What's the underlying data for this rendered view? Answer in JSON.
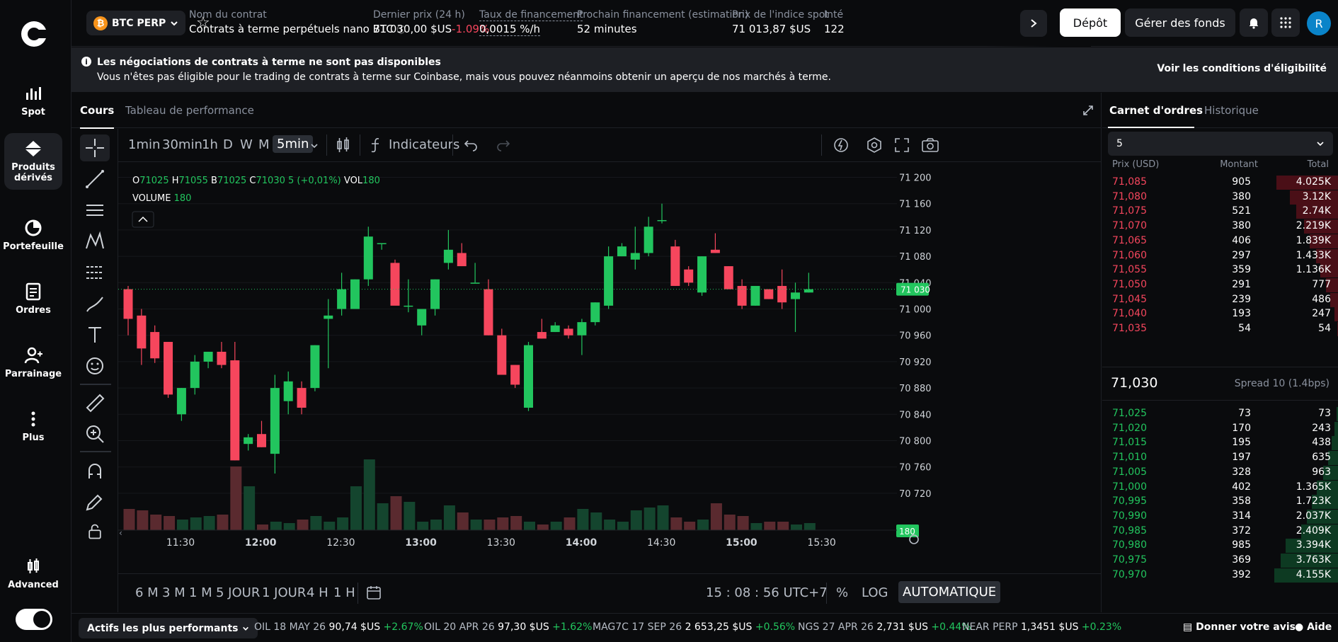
{
  "nav": {
    "items": [
      {
        "label": "Spot"
      },
      {
        "label": "Produits dérivés"
      },
      {
        "label": "Portefeuille"
      },
      {
        "label": "Ordres"
      },
      {
        "label": "Parrainage"
      },
      {
        "label": "Plus"
      },
      {
        "label": "Advanced"
      }
    ]
  },
  "header": {
    "asset": "BTC PERP",
    "contract_label": "Nom du contrat",
    "contract_value": "Contrats à terme perpétuels nano BTC",
    "last_label": "Dernier prix (24 h)",
    "last_value": "71 030,00 $US",
    "last_change": "-1.09%",
    "funding_label": "Taux de financement",
    "funding_value": "0,0015 %/h",
    "next_label": "Prochain financement (estimation)",
    "next_value": "52 minutes",
    "index_label": "Prix de l'indice spot",
    "index_value": "71 013,87 $US",
    "oi_label": "Inté",
    "oi_value": "122",
    "deposit": "Dépôt",
    "manage": "Gérer des fonds",
    "avatar": "R"
  },
  "banner": {
    "title": "Les négociations de contrats à terme ne sont pas disponibles",
    "body": "Vous n'êtes pas éligible pour le trading de contrats à terme sur Coinbase, mais vous pouvez néanmoins obtenir un aperçu de nos marchés à terme.",
    "link": "Voir les conditions d'éligibilité"
  },
  "chart_tabs": [
    "Cours",
    "Tableau de performance"
  ],
  "timeframes": [
    "1min",
    "30min",
    "1h",
    "D",
    "W",
    "M",
    "5min"
  ],
  "indicators": "Indicateurs",
  "ohlc": {
    "o": "71025",
    "h": "71055",
    "b": "71025",
    "c": "71030",
    "chg": "5 (+0,01%)",
    "vol": "180",
    "volume_label": "VOLUME"
  },
  "ranges": [
    "6 M",
    "3 M",
    "1 M",
    "5 JOUR",
    "1 JOUR",
    "4 H",
    "1 H"
  ],
  "clock": "15 : 08 : 56 UTC+7",
  "scale": {
    "pct": "%",
    "log": "LOG",
    "auto": "AUTOMATIQUE"
  },
  "colors": {
    "up": "#22c55e",
    "down": "#f6465d",
    "upVol": "#14452e",
    "downVol": "#5a2a2f"
  },
  "chart_data": {
    "type": "candlestick",
    "x_ticks": [
      "11:30",
      "12:00",
      "12:30",
      "13:00",
      "13:30",
      "14:00",
      "14:30",
      "15:00",
      "15:30"
    ],
    "y_ticks": [
      "71 200",
      "71 160",
      "71 120",
      "71 080",
      "71 040",
      "71 000",
      "70 960",
      "70 920",
      "70 880",
      "70 840",
      "70 800",
      "70 760",
      "70 720"
    ],
    "ylim": [
      70707,
      71207
    ],
    "price_label": "71 030",
    "volume_label": "180",
    "candles": [
      [
        71030,
        71035,
        70960,
        70985
      ],
      [
        70990,
        71000,
        70915,
        70940
      ],
      [
        70965,
        70975,
        70918,
        70925
      ],
      [
        70950,
        70950,
        70865,
        70870
      ],
      [
        70840,
        70880,
        70830,
        70880
      ],
      [
        70880,
        70930,
        70870,
        70920
      ],
      [
        70920,
        70935,
        70910,
        70935
      ],
      [
        70935,
        70950,
        70910,
        70915
      ],
      [
        70922,
        70950,
        70770,
        70770
      ],
      [
        70795,
        70810,
        70785,
        70805
      ],
      [
        70810,
        70830,
        70790,
        70790
      ],
      [
        70780,
        70900,
        70750,
        70880
      ],
      [
        70860,
        70905,
        70840,
        70890
      ],
      [
        70880,
        70890,
        70840,
        70850
      ],
      [
        70880,
        70945,
        70875,
        70945
      ],
      [
        70985,
        71015,
        70910,
        70990
      ],
      [
        71000,
        71055,
        70990,
        71030
      ],
      [
        71000,
        71045,
        71000,
        71045
      ],
      [
        71045,
        71125,
        71035,
        71110
      ],
      [
        71100,
        71100,
        71090,
        71100
      ],
      [
        71070,
        71075,
        71010,
        71005
      ],
      [
        71005,
        71045,
        70995,
        71005
      ],
      [
        70975,
        71000,
        70960,
        71000
      ],
      [
        71000,
        71045,
        70990,
        71045
      ],
      [
        71070,
        71120,
        71060,
        71090
      ],
      [
        71085,
        71100,
        71065,
        71065
      ],
      [
        71040,
        71070,
        71040,
        71040
      ],
      [
        71030,
        71045,
        70960,
        70960
      ],
      [
        70960,
        70970,
        70900,
        70900
      ],
      [
        70915,
        70915,
        70880,
        70885
      ],
      [
        70850,
        70950,
        70845,
        70945
      ],
      [
        70965,
        70985,
        70955,
        70955
      ],
      [
        70965,
        70980,
        70965,
        70975
      ],
      [
        70970,
        70975,
        70955,
        70960
      ],
      [
        70960,
        70985,
        70930,
        70980
      ],
      [
        70980,
        71010,
        70975,
        71010
      ],
      [
        71005,
        71095,
        71000,
        71080
      ],
      [
        71080,
        71100,
        71080,
        71095
      ],
      [
        71075,
        71125,
        71060,
        71085
      ],
      [
        71085,
        71140,
        71080,
        71125
      ],
      [
        71135,
        71160,
        71130,
        71135
      ],
      [
        71095,
        71105,
        71035,
        71035
      ],
      [
        71060,
        71065,
        71035,
        71040
      ],
      [
        71025,
        71080,
        71020,
        71080
      ],
      [
        71090,
        71115,
        71085,
        71085
      ],
      [
        71065,
        71065,
        71030,
        71030
      ],
      [
        71035,
        71045,
        71000,
        71005
      ],
      [
        71005,
        71035,
        71005,
        71035
      ],
      [
        71030,
        71030,
        71015,
        71015
      ],
      [
        71035,
        71060,
        71000,
        71010
      ],
      [
        71015,
        71040,
        70965,
        71025
      ],
      [
        71025,
        71055,
        71025,
        71030
      ]
    ],
    "volumes": [
      30,
      28,
      22,
      20,
      15,
      18,
      20,
      22,
      90,
      62,
      8,
      12,
      10,
      15,
      20,
      12,
      18,
      62,
      100,
      38,
      48,
      40,
      12,
      15,
      35,
      25,
      15,
      15,
      18,
      20,
      12,
      8,
      12,
      18,
      30,
      25,
      15,
      12,
      28,
      32,
      35,
      18,
      12,
      15,
      38,
      22,
      20,
      10,
      12,
      12,
      8,
      10
    ]
  },
  "orderbook": {
    "tabs": [
      "Carnet d'ordres",
      "Historique"
    ],
    "group": "5",
    "headers": [
      "Prix (USD)",
      "Montant",
      "Total"
    ],
    "asks": [
      {
        "p": "71,085",
        "a": "905",
        "t": "4.025K"
      },
      {
        "p": "71,080",
        "a": "380",
        "t": "3.12K"
      },
      {
        "p": "71,075",
        "a": "521",
        "t": "2.74K"
      },
      {
        "p": "71,070",
        "a": "380",
        "t": "2.219K"
      },
      {
        "p": "71,065",
        "a": "406",
        "t": "1.839K"
      },
      {
        "p": "71,060",
        "a": "297",
        "t": "1.433K"
      },
      {
        "p": "71,055",
        "a": "359",
        "t": "1.136K"
      },
      {
        "p": "71,050",
        "a": "291",
        "t": "777"
      },
      {
        "p": "71,045",
        "a": "239",
        "t": "486"
      },
      {
        "p": "71,040",
        "a": "193",
        "t": "247"
      },
      {
        "p": "71,035",
        "a": "54",
        "t": "54"
      }
    ],
    "mid": "71,030",
    "spread": "Spread 10 (1.4bps)",
    "bids": [
      {
        "p": "71,025",
        "a": "73",
        "t": "73"
      },
      {
        "p": "71,020",
        "a": "170",
        "t": "243"
      },
      {
        "p": "71,015",
        "a": "195",
        "t": "438"
      },
      {
        "p": "71,010",
        "a": "197",
        "t": "635"
      },
      {
        "p": "71,005",
        "a": "328",
        "t": "963"
      },
      {
        "p": "71,000",
        "a": "402",
        "t": "1.365K"
      },
      {
        "p": "70,995",
        "a": "358",
        "t": "1.723K"
      },
      {
        "p": "70,990",
        "a": "314",
        "t": "2.037K"
      },
      {
        "p": "70,985",
        "a": "372",
        "t": "2.409K"
      },
      {
        "p": "70,980",
        "a": "985",
        "t": "3.394K"
      },
      {
        "p": "70,975",
        "a": "369",
        "t": "3.763K"
      },
      {
        "p": "70,970",
        "a": "392",
        "t": "4.155K"
      }
    ],
    "ask_depth": [
      4.025,
      3.12,
      2.74,
      2.219,
      1.839,
      1.433,
      1.136,
      0.777,
      0.486,
      0.247,
      0.054
    ],
    "bid_depth": [
      0.073,
      0.243,
      0.438,
      0.635,
      0.963,
      1.365,
      1.723,
      2.037,
      2.409,
      3.394,
      3.763,
      4.155
    ]
  },
  "ticker": {
    "button": "Actifs les plus performants",
    "items": [
      {
        "n": "OIL 18 MAY 26",
        "p": "90,74 $US",
        "c": "+2.67%"
      },
      {
        "n": "OIL 20 APR 26",
        "p": "97,30 $US",
        "c": "+1.62%"
      },
      {
        "n": "MAG7C 17 SEP 26",
        "p": "2 653,25 $US",
        "c": "+0.56%"
      },
      {
        "n": "NGS 27 APR 26",
        "p": "2,731 $US",
        "c": "+0.44%"
      },
      {
        "n": "NEAR PERP",
        "p": "1,3451 $US",
        "c": "+0.23%"
      }
    ],
    "feedback": "Donner votre avis",
    "help": "Aide"
  }
}
